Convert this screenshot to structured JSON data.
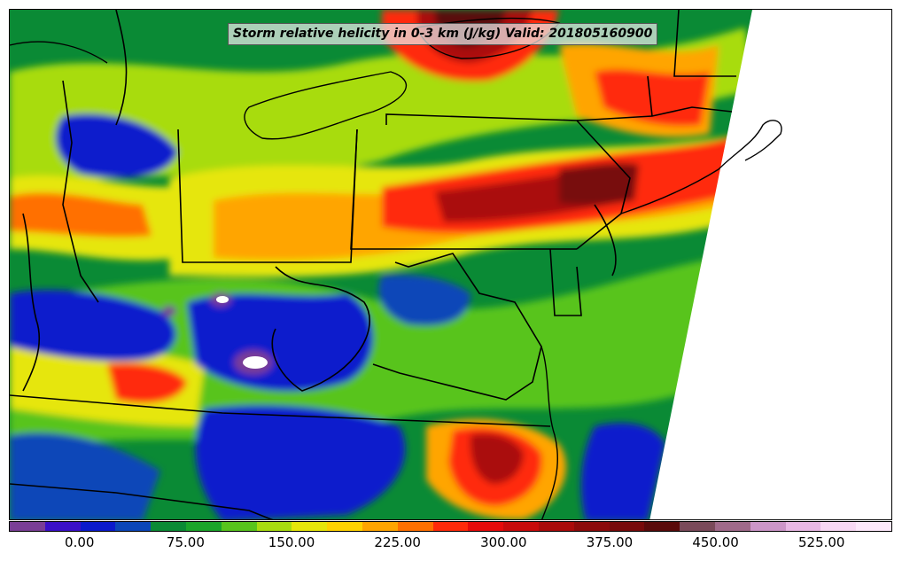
{
  "title": "Storm relative helicity in 0-3 km (J/kg) Valid: 201805160900",
  "colorbar": {
    "min": -50,
    "max": 575,
    "levels": 25,
    "colors": [
      "#7a3e96",
      "#3a10c8",
      "#0a1acc",
      "#0a46b8",
      "#0a8a35",
      "#1aa52a",
      "#58c41c",
      "#a8dc10",
      "#e6e60a",
      "#ffd200",
      "#ffa500",
      "#ff7000",
      "#ff2a0a",
      "#e60a0a",
      "#c80a0a",
      "#aa0a0a",
      "#8c0a0a",
      "#780a0a",
      "#5a0a0a",
      "#7a4a5a",
      "#a06a8a",
      "#cc96c8",
      "#e8b8e4",
      "#f8d8f4",
      "#fde8fb"
    ],
    "ticks": [
      "0.00",
      "75.00",
      "150.00",
      "225.00",
      "300.00",
      "375.00",
      "450.00",
      "525.00"
    ],
    "tick_values": [
      0,
      75,
      150,
      225,
      300,
      375,
      450,
      525
    ]
  }
}
